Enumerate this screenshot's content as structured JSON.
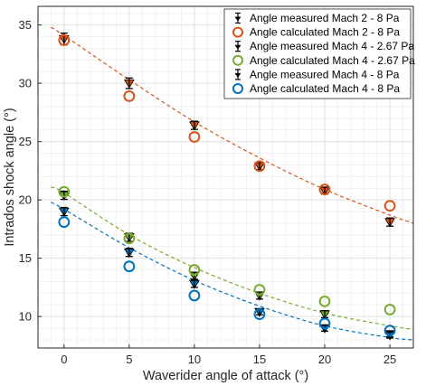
{
  "chart_data": {
    "type": "scatter",
    "xlabel": "Waverider angle of attack (°)",
    "ylabel": "Intrados shock angle (°)",
    "xlim": [
      -2,
      26.8
    ],
    "ylim": [
      7.3,
      36.6
    ],
    "xticks": [
      "0",
      "5",
      "10",
      "15",
      "20",
      "25"
    ],
    "yticks": [
      "10",
      "15",
      "20",
      "25",
      "30",
      "35"
    ],
    "grid": true,
    "minor_grid": true,
    "legend_position": "top-right",
    "colors": {
      "orange": "#D95319",
      "green": "#77AC30",
      "blue": "#0072BD",
      "black": "#000000"
    },
    "series": [
      {
        "name": "Angle measured Mach 2 - 8 Pa",
        "kind": "measured",
        "color": "#D95319",
        "x": [
          0,
          5,
          10,
          15,
          20,
          25
        ],
        "y": [
          33.8,
          30.0,
          26.4,
          22.9,
          20.8,
          18.1
        ],
        "err": [
          0.5,
          0.45,
          0.35,
          0.3,
          0.3,
          0.35
        ]
      },
      {
        "name": "Angle calculated Mach 2 - 8 Pa",
        "kind": "calculated",
        "color": "#D95319",
        "x": [
          0,
          5,
          10,
          15,
          20,
          25
        ],
        "y": [
          33.7,
          28.9,
          25.4,
          22.9,
          20.9,
          19.5
        ]
      },
      {
        "name": "Angle measured Mach 4 - 2.67 Pa",
        "kind": "measured",
        "color": "#77AC30",
        "x": [
          0,
          5,
          10,
          15,
          20,
          25
        ],
        "y": [
          20.4,
          16.8,
          13.5,
          11.8,
          10.2,
          8.5
        ],
        "err": [
          0.35,
          0.35,
          0.3,
          0.3,
          0.3,
          0.25
        ]
      },
      {
        "name": "Angle calculated Mach 4 - 2.67 Pa",
        "kind": "calculated",
        "color": "#77AC30",
        "x": [
          0,
          5,
          10,
          15,
          20,
          25
        ],
        "y": [
          20.7,
          16.7,
          14.0,
          12.3,
          11.3,
          10.6
        ]
      },
      {
        "name": "Angle measured Mach 4 - 8 Pa",
        "kind": "measured",
        "color": "#0072BD",
        "x": [
          0,
          5,
          10,
          15,
          20,
          25
        ],
        "y": [
          19.0,
          15.5,
          12.8,
          10.4,
          9.0,
          8.4
        ],
        "err": [
          0.35,
          0.35,
          0.3,
          0.25,
          0.25,
          0.25
        ]
      },
      {
        "name": "Angle calculated Mach 4 - 8 Pa",
        "kind": "calculated",
        "color": "#0072BD",
        "x": [
          0,
          5,
          10,
          15,
          20,
          25
        ],
        "y": [
          18.1,
          14.3,
          11.8,
          10.2,
          9.4,
          8.8
        ]
      }
    ],
    "fit_curves": [
      {
        "color": "#D95319",
        "x": [
          -1,
          0,
          5,
          10,
          15,
          20,
          25,
          26.8
        ],
        "y": [
          34.8,
          34.1,
          30.3,
          26.7,
          23.6,
          20.9,
          18.7,
          18.0
        ]
      },
      {
        "color": "#77AC30",
        "x": [
          -1,
          0,
          5,
          10,
          15,
          20,
          25,
          26.8
        ],
        "y": [
          21.1,
          20.6,
          17.0,
          14.2,
          12.0,
          10.3,
          9.2,
          8.9
        ]
      },
      {
        "color": "#0072BD",
        "x": [
          -1,
          0,
          5,
          10,
          15,
          20,
          25,
          26.8
        ],
        "y": [
          19.8,
          19.2,
          15.9,
          13.1,
          10.9,
          9.2,
          8.2,
          8.0
        ]
      }
    ]
  }
}
